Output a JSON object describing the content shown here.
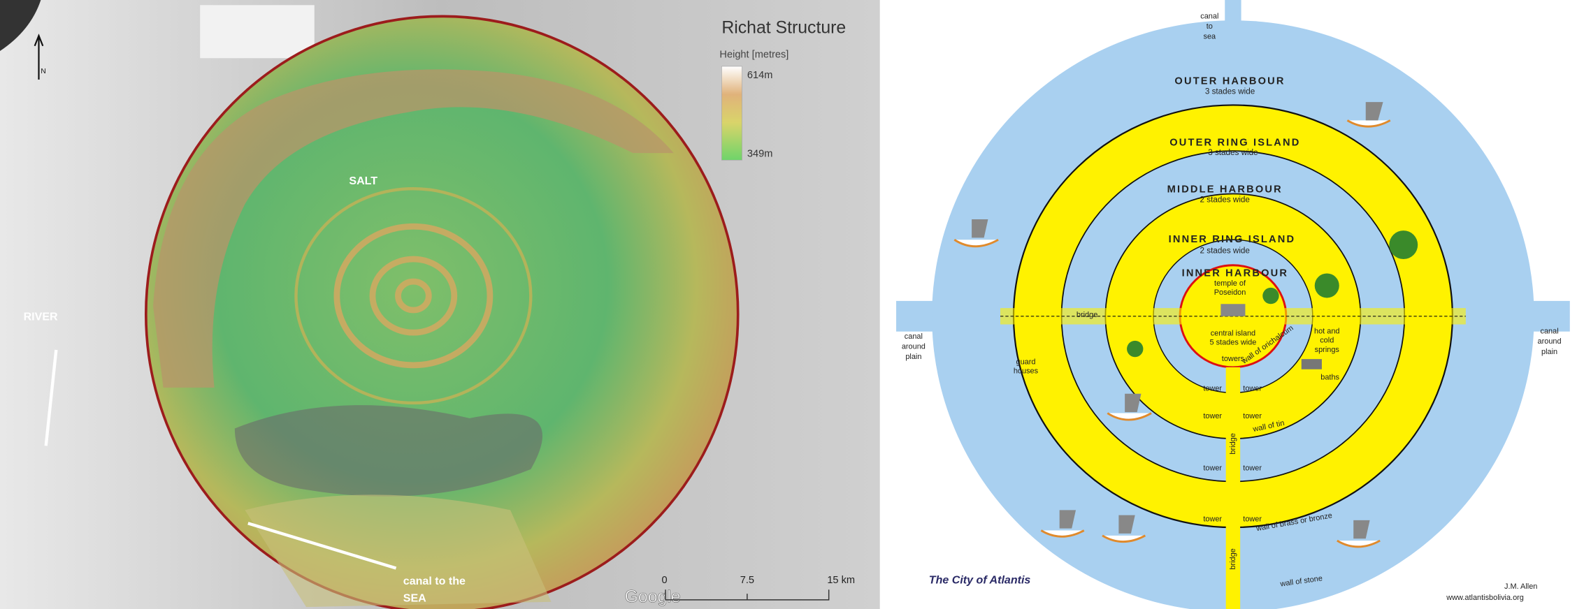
{
  "left": {
    "title": "Richat Structure",
    "legend": {
      "title": "Height [metres]",
      "max": "614m",
      "min": "349m"
    },
    "north": "N",
    "labels": {
      "salt": "SALT",
      "river": "RIVER",
      "canal": [
        "canal to the",
        "SEA"
      ]
    },
    "attribution": "Google",
    "scale": [
      "0",
      "7.5",
      "15 km"
    ]
  },
  "right": {
    "canal_to_sea": [
      "canal",
      "to",
      "sea"
    ],
    "rings": [
      {
        "name": "OUTER HARBOUR",
        "width": "3 stades wide"
      },
      {
        "name": "OUTER RING ISLAND",
        "width": "3 stades wide"
      },
      {
        "name": "MIDDLE HARBOUR",
        "width": "2 stades wide"
      },
      {
        "name": "INNER RING ISLAND",
        "width": "2 stades wide"
      },
      {
        "name": "INNER HARBOUR"
      }
    ],
    "temple": [
      "temple of",
      "Poseidon"
    ],
    "central_island": [
      "central island",
      "5 stades wide"
    ],
    "bridge": "bridge",
    "springs": [
      "hot and",
      "cold",
      "springs"
    ],
    "wall_orichalcum": "wall of orichalcum",
    "towers": "towers",
    "baths": "baths",
    "guard_houses": [
      "guard",
      "houses"
    ],
    "canal_around_plain_left": [
      "canal",
      "around",
      "plain"
    ],
    "canal_around_plain_right": [
      "canal",
      "around",
      "plain"
    ],
    "tower": "tower",
    "wall_tin": "wall of tin",
    "wall_brass": "wall of brass or bronze",
    "wall_stone": "wall of stone",
    "caption": "The City of Atlantis",
    "author": "J.M. Allen",
    "website": "www.atlantisbolivia.org"
  }
}
